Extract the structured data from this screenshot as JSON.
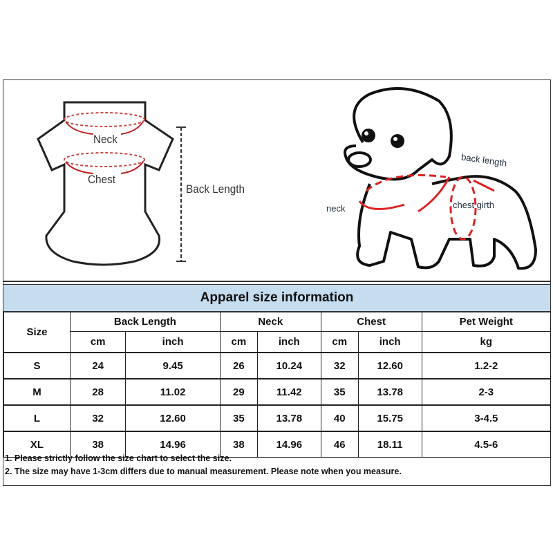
{
  "illustration": {
    "shirt_labels": {
      "neck": "Neck",
      "chest": "Chest",
      "back_length": "Back Length"
    },
    "dog_labels": {
      "back_length": "back length",
      "neck": "neck",
      "chest_girth": "chest girth"
    },
    "accent_color": "#cc2222"
  },
  "table": {
    "title": "Apparel size information",
    "header_color": "#c6dcef",
    "size_header": "Size",
    "groups": [
      "Back Length",
      "Neck",
      "Chest",
      "Pet Weight"
    ],
    "units": [
      "cm",
      "inch",
      "cm",
      "inch",
      "cm",
      "inch",
      "kg"
    ],
    "rows": [
      [
        "S",
        "24",
        "9.45",
        "26",
        "10.24",
        "32",
        "12.60",
        "1.2-2"
      ],
      [
        "M",
        "28",
        "11.02",
        "29",
        "11.42",
        "35",
        "13.78",
        "2-3"
      ],
      [
        "L",
        "32",
        "12.60",
        "35",
        "13.78",
        "40",
        "15.75",
        "3-4.5"
      ],
      [
        "XL",
        "38",
        "14.96",
        "38",
        "14.96",
        "46",
        "18.11",
        "4.5-6"
      ]
    ]
  },
  "notes": [
    "1. Please strictly follow the size chart  to select the size.",
    "2. The size may have 1-3cm differs due to manual measurement. Please note when you measure."
  ]
}
